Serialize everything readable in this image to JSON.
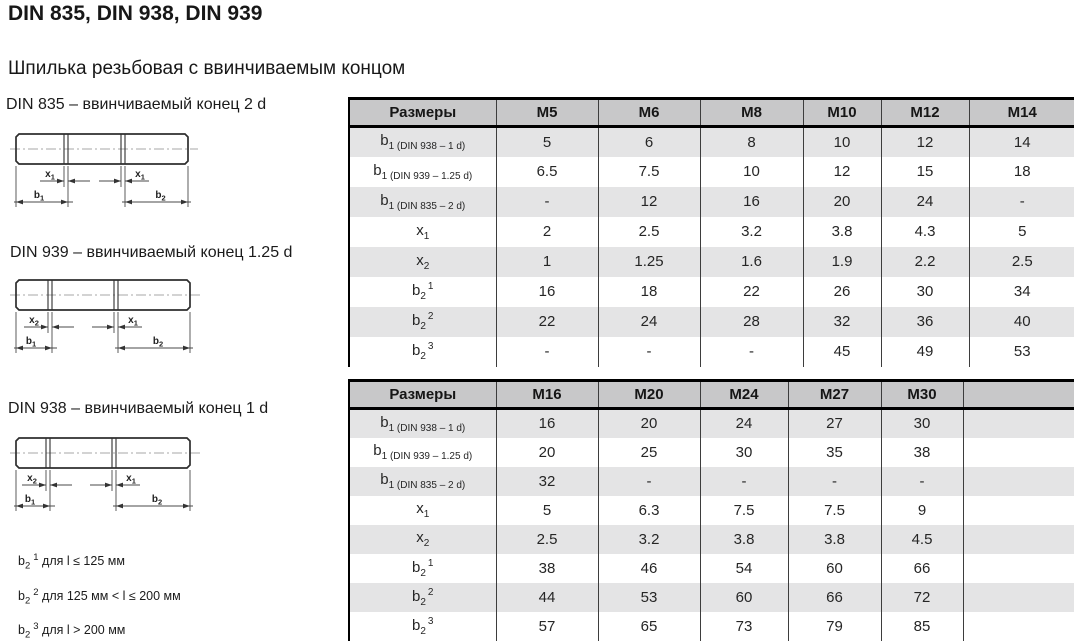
{
  "page": {
    "title": "DIN 835, DIN 938, DIN 939",
    "subtitle": "Шпилька резьбовая с ввинчиваемым концом"
  },
  "drawings": [
    {
      "caption": "DIN 835 – ввинчиваемый конец 2 d",
      "labels": {
        "x_left": {
          "base": "x",
          "sub": "1"
        },
        "x_right": {
          "base": "x",
          "sub": "1"
        },
        "b_left": {
          "base": "b",
          "sub": "1"
        },
        "b_right": {
          "base": "b",
          "sub": "2"
        }
      }
    },
    {
      "caption": "DIN 939 – ввинчиваемый конец 1.25 d",
      "labels": {
        "x_left": {
          "base": "x",
          "sub": "2"
        },
        "x_right": {
          "base": "x",
          "sub": "1"
        },
        "b_left": {
          "base": "b",
          "sub": "1"
        },
        "b_right": {
          "base": "b",
          "sub": "2"
        }
      }
    },
    {
      "caption": "DIN 938 – ввинчиваемый конец 1 d",
      "labels": {
        "x_left": {
          "base": "x",
          "sub": "2"
        },
        "x_right": {
          "base": "x",
          "sub": "1"
        },
        "b_left": {
          "base": "b",
          "sub": "1"
        },
        "b_right": {
          "base": "b",
          "sub": "2"
        }
      }
    }
  ],
  "tables": [
    {
      "header": [
        "Размеры",
        "M5",
        "M6",
        "M8",
        "M10",
        "M12",
        "M14"
      ],
      "rows": [
        {
          "label": {
            "base": "b",
            "sub": "1",
            "note": "(DIN 938 – 1 d)"
          },
          "values": [
            "5",
            "6",
            "8",
            "10",
            "12",
            "14"
          ]
        },
        {
          "label": {
            "base": "b",
            "sub": "1",
            "note": "(DIN 939 – 1.25 d)"
          },
          "values": [
            "6.5",
            "7.5",
            "10",
            "12",
            "15",
            "18"
          ]
        },
        {
          "label": {
            "base": "b",
            "sub": "1",
            "note": "(DIN 835 – 2 d)"
          },
          "values": [
            "-",
            "12",
            "16",
            "20",
            "24",
            "-"
          ]
        },
        {
          "label": {
            "base": "x",
            "sub": "1"
          },
          "values": [
            "2",
            "2.5",
            "3.2",
            "3.8",
            "4.3",
            "5"
          ]
        },
        {
          "label": {
            "base": "x",
            "sub": "2"
          },
          "values": [
            "1",
            "1.25",
            "1.6",
            "1.9",
            "2.2",
            "2.5"
          ]
        },
        {
          "label": {
            "base": "b",
            "sub": "2",
            "sup": "1"
          },
          "values": [
            "16",
            "18",
            "22",
            "26",
            "30",
            "34"
          ]
        },
        {
          "label": {
            "base": "b",
            "sub": "2",
            "sup": "2"
          },
          "values": [
            "22",
            "24",
            "28",
            "32",
            "36",
            "40"
          ]
        },
        {
          "label": {
            "base": "b",
            "sub": "2",
            "sup": "3"
          },
          "values": [
            "-",
            "-",
            "-",
            "45",
            "49",
            "53"
          ]
        }
      ]
    },
    {
      "header": [
        "Размеры",
        "M16",
        "M20",
        "M24",
        "M27",
        "M30",
        ""
      ],
      "rows": [
        {
          "label": {
            "base": "b",
            "sub": "1",
            "note": "(DIN 938 – 1 d)"
          },
          "values": [
            "16",
            "20",
            "24",
            "27",
            "30",
            ""
          ]
        },
        {
          "label": {
            "base": "b",
            "sub": "1",
            "note": "(DIN 939 – 1.25 d)"
          },
          "values": [
            "20",
            "25",
            "30",
            "35",
            "38",
            ""
          ]
        },
        {
          "label": {
            "base": "b",
            "sub": "1",
            "note": "(DIN 835 – 2 d)"
          },
          "values": [
            "32",
            "-",
            "-",
            "-",
            "-",
            ""
          ]
        },
        {
          "label": {
            "base": "x",
            "sub": "1"
          },
          "values": [
            "5",
            "6.3",
            "7.5",
            "7.5",
            "9",
            ""
          ]
        },
        {
          "label": {
            "base": "x",
            "sub": "2"
          },
          "values": [
            "2.5",
            "3.2",
            "3.8",
            "3.8",
            "4.5",
            ""
          ]
        },
        {
          "label": {
            "base": "b",
            "sub": "2",
            "sup": "1"
          },
          "values": [
            "38",
            "46",
            "54",
            "60",
            "66",
            ""
          ]
        },
        {
          "label": {
            "base": "b",
            "sub": "2",
            "sup": "2"
          },
          "values": [
            "44",
            "53",
            "60",
            "66",
            "72",
            ""
          ]
        },
        {
          "label": {
            "base": "b",
            "sub": "2",
            "sup": "3"
          },
          "values": [
            "57",
            "65",
            "73",
            "79",
            "85",
            ""
          ]
        }
      ]
    }
  ],
  "footnotes": [
    {
      "base": "b",
      "sub": "2",
      "sup": "1",
      "text": "для l ≤ 125 мм"
    },
    {
      "base": "b",
      "sub": "2",
      "sup": "2",
      "text": "для 125 мм < l ≤ 200 мм"
    },
    {
      "base": "b",
      "sub": "2",
      "sup": "3",
      "text": "для l > 200 мм"
    }
  ],
  "colors": {
    "header_bg": "#c8c8c9",
    "stripe_bg": "#e4e4e5",
    "table_border": "#000000",
    "grid_line": "#3d3d3d",
    "text": "#1c1c1c"
  }
}
